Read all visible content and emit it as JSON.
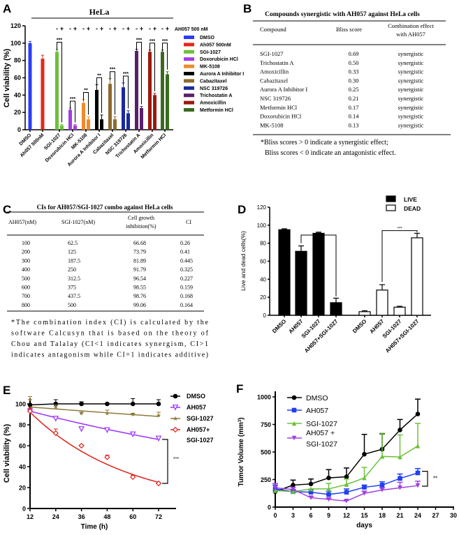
{
  "panel_labels": [
    "A",
    "B",
    "C",
    "D",
    "E",
    "F"
  ],
  "chart_data": [
    {
      "id": "A",
      "type": "bar",
      "title": "HeLa",
      "ylabel": "Cell viability (%)",
      "ylim": [
        0,
        120
      ],
      "yticks": [
        0,
        20,
        40,
        60,
        80,
        100,
        120
      ],
      "treatment_label": "AH057 500 nM",
      "minus": "-",
      "plus": "+",
      "categories": [
        "DMSO",
        "Ah057 500nM",
        "SGI-1027",
        "Doxorubicin HCl",
        "MK-5108",
        "Aurora A Inhibitor I",
        "Cabazitaxel",
        "NSC 319726",
        "Trichostatin A",
        "Amoxicillin",
        "Metformin HCl"
      ],
      "colors": [
        "#2b3cf5",
        "#e02a1b",
        "#6cc13a",
        "#a33de0",
        "#f08a2a",
        "#000000",
        "#8e6a2e",
        "#1a2a9a",
        "#5a1f6a",
        "#9a1a10",
        "#3a6a1f"
      ],
      "without_ah057": [
        100,
        82,
        90,
        23,
        31,
        46,
        53,
        49,
        91,
        90,
        90
      ],
      "with_ah057": [
        null,
        null,
        5,
        5,
        12,
        12,
        12,
        19,
        25,
        40,
        64
      ],
      "err_without": [
        2,
        4,
        3,
        2,
        4,
        6,
        6,
        5,
        2,
        2,
        2
      ],
      "err_with": [
        null,
        null,
        1,
        1,
        3,
        5,
        3,
        3,
        2,
        2,
        3
      ],
      "significance": [
        "",
        "",
        "***",
        "***",
        "**",
        "**",
        "***",
        "***",
        "***",
        "***",
        "***"
      ],
      "legend": [
        "DMSO",
        "Ah057 500nM",
        "SGI-1027",
        "Doxorubicin HCl",
        "MK-5108",
        "Aurora A Inhibitor I",
        "Cabazitaxel",
        "NSC 319726",
        "Trichostatin A",
        "Amoxicillin",
        "Metformin HCl"
      ]
    },
    {
      "id": "B",
      "type": "table",
      "title": "Compounds synergistic with AH057 against HeLa cells",
      "columns": [
        "Compound",
        "Bliss score",
        "Combination effect",
        "with AH057"
      ],
      "rows": [
        [
          "SGI-1027",
          "0.69",
          "synergistic"
        ],
        [
          "Trichostatin A",
          "0.50",
          "synergistic"
        ],
        [
          "Amoxicillin",
          "0.33",
          "synergistic"
        ],
        [
          "Cabazitaxel",
          "0.30",
          "synergistic"
        ],
        [
          "Aurora A Inhibitor I",
          "0.25",
          "synergistic"
        ],
        [
          "NSC 319726",
          "0.21",
          "synergistic"
        ],
        [
          "Metformin HCl",
          "0.17",
          "synergistic"
        ],
        [
          "Doxorubicin HCl",
          "0.14",
          "synergistic"
        ],
        [
          "MK-5108",
          "0.13",
          "synergistic"
        ]
      ],
      "footnote": [
        "*Bliss scores > 0 indicate a synergistic effect;",
        "Bliss scores < 0 indicate an antagonistic effect."
      ]
    },
    {
      "id": "C",
      "type": "table",
      "title": "CIs for AH057/SGI-1027 combo against HeLa cells",
      "columns": [
        "AH057(nM)",
        "SGI-1027(nM)",
        "Cell growth",
        "inhibition(%)",
        "CI"
      ],
      "rows": [
        [
          "100",
          "62.5",
          "66.68",
          "0.26"
        ],
        [
          "200",
          "125",
          "73.79",
          "0.41"
        ],
        [
          "300",
          "187.5",
          "81.89",
          "0.445"
        ],
        [
          "400",
          "250",
          "91.79",
          "0.325"
        ],
        [
          "500",
          "312.5",
          "96.54",
          "0.227"
        ],
        [
          "600",
          "375",
          "98.55",
          "0.159"
        ],
        [
          "700",
          "437.5",
          "98.76",
          "0.168"
        ],
        [
          "800",
          "500",
          "99.06",
          "0.164"
        ]
      ],
      "footnote": [
        "*The combination index (CI) is calculated by the",
        "software Calcusyn that is based on the theory of",
        "Chou and Talalay (CI<1 indicates synergism, CI>1",
        "indicates antagonism while CI=1 indicates additive)"
      ]
    },
    {
      "id": "D",
      "type": "bar",
      "ylabel": "Live and dead cells(%)",
      "ylim": [
        0,
        120
      ],
      "yticks": [
        0,
        20,
        40,
        60,
        80,
        100,
        120
      ],
      "categories": [
        "DMSO",
        "AH057",
        "SGI-1027",
        "AH057+SGI-1027"
      ],
      "series": [
        {
          "name": "LIVE",
          "values": [
            95,
            71,
            91,
            14
          ],
          "err": [
            1,
            6,
            1,
            5
          ],
          "fill": "#000000"
        },
        {
          "name": "DEAD",
          "values": [
            4,
            28,
            9,
            86
          ],
          "err": [
            1,
            6,
            1,
            5
          ],
          "fill": "#ffffff"
        }
      ],
      "significance": [
        "***",
        "***"
      ]
    },
    {
      "id": "E",
      "type": "line",
      "xlabel": "Time (h)",
      "ylabel": "Cell viability (%)",
      "xlim": [
        12,
        72
      ],
      "ylim": [
        0,
        100
      ],
      "xticks": [
        12,
        24,
        36,
        48,
        60,
        72
      ],
      "yticks": [
        0,
        20,
        40,
        60,
        80,
        100
      ],
      "x": [
        12,
        24,
        36,
        48,
        60,
        72
      ],
      "series": [
        {
          "name": "DMSO",
          "values": [
            99,
            100,
            100,
            100,
            100,
            100
          ],
          "err": [
            1,
            4,
            2,
            1,
            5,
            4
          ],
          "color": "#000000",
          "marker": "circle"
        },
        {
          "name": "AH057",
          "values": [
            93,
            86,
            76,
            75,
            71,
            67
          ],
          "err": [
            1,
            1,
            1,
            2,
            1,
            1
          ],
          "color": "#9b30ff",
          "marker": "triangle-down"
        },
        {
          "name": "SGI-1027",
          "values": [
            104,
            97,
            91,
            91,
            90,
            89
          ],
          "err": [
            3,
            2,
            1,
            3,
            1,
            3
          ],
          "color": "#8b7a3a",
          "marker": "star"
        },
        {
          "name": "AH057+ SGI-1027",
          "values": [
            93,
            72,
            60,
            49,
            30,
            24
          ],
          "err": [
            3,
            4,
            1,
            2,
            2,
            1
          ],
          "color": "#e0201a",
          "marker": "diamond"
        }
      ],
      "legend": [
        "DMSO",
        "AH057",
        "SGI-1027",
        "AH057+",
        "SGI-1027"
      ],
      "significance": "***"
    },
    {
      "id": "F",
      "type": "line",
      "xlabel": "days",
      "ylabel": "Tumor Volume (mm",
      "ylabel_sup": "3",
      "ylabel_end": ")",
      "xlim": [
        0,
        30
      ],
      "ylim": [
        0,
        1000
      ],
      "xticks": [
        0,
        3,
        6,
        9,
        12,
        15,
        18,
        21,
        24,
        27,
        30
      ],
      "yticks": [
        0,
        250,
        500,
        750,
        1000
      ],
      "x": [
        0,
        3,
        6,
        9,
        12,
        15,
        18,
        21,
        24
      ],
      "series": [
        {
          "name": "DMSO",
          "values": [
            140,
            200,
            210,
            265,
            275,
            480,
            525,
            700,
            845
          ],
          "err": [
            0,
            45,
            45,
            75,
            80,
            180,
            140,
            95,
            135
          ],
          "color": "#000000",
          "marker": "circle"
        },
        {
          "name": "AH057",
          "values": [
            165,
            140,
            135,
            115,
            135,
            180,
            200,
            260,
            310
          ],
          "err": [
            35,
            20,
            25,
            30,
            30,
            20,
            30,
            40,
            40
          ],
          "color": "#2040f0",
          "marker": "square"
        },
        {
          "name": "SGI-1027",
          "values": [
            150,
            140,
            165,
            165,
            205,
            265,
            460,
            455,
            555
          ],
          "err": [
            0,
            0,
            0,
            50,
            50,
            95,
            210,
            200,
            205
          ],
          "color": "#6cc13a",
          "marker": "triangle-up"
        },
        {
          "name": "AH057 + SGI-1027",
          "values": [
            175,
            160,
            85,
            70,
            55,
            125,
            155,
            175,
            195
          ],
          "err": [
            40,
            20,
            10,
            10,
            10,
            20,
            20,
            50,
            40
          ],
          "color": "#a040e0",
          "marker": "triangle-down"
        }
      ],
      "legend": [
        "DMSO",
        "AH057",
        "SGI-1027",
        "AH057 +",
        "SGI-1027"
      ],
      "significance": "**"
    }
  ]
}
